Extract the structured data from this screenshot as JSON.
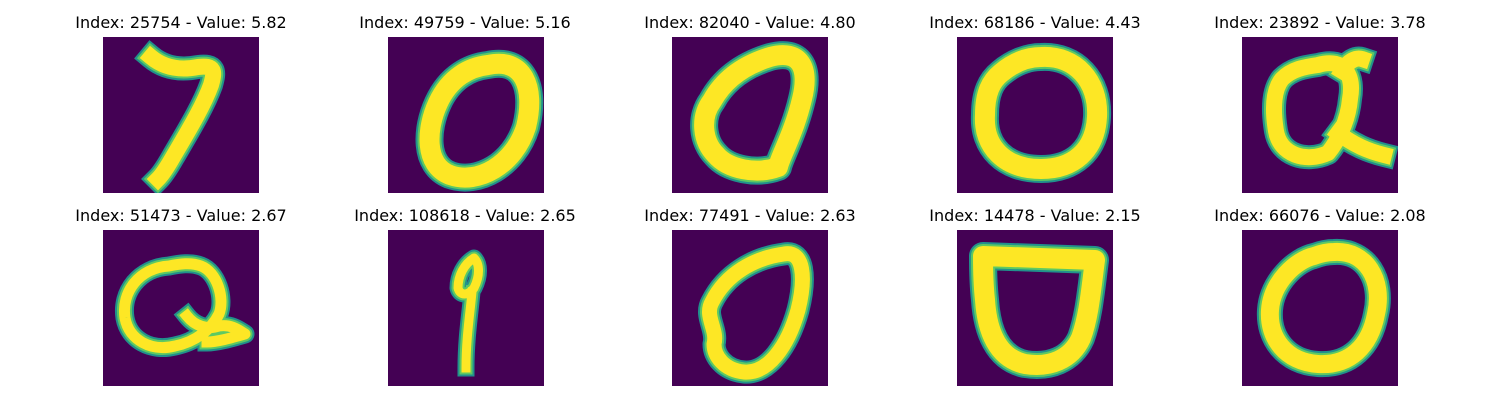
{
  "colors": {
    "background": "#440154",
    "stroke_core": "#fde725",
    "stroke_edge": "#21918c",
    "stroke_mid": "#5ec962",
    "caption_text": "#000000"
  },
  "panels": [
    {
      "caption": "Index: 25754 - Value: 5.82",
      "index": 25754,
      "value": 5.82,
      "glyph": "handwritten-digit-seven",
      "paths": [
        "M 48 20 C 60 30, 75 34, 95 30 C 112 28, 112 34, 108 48 C 100 70, 84 96, 70 120 C 62 134, 57 140, 55 142"
      ],
      "stroke_width": 16
    },
    {
      "caption": "Index: 49759 - Value: 5.16",
      "index": 49759,
      "value": 5.16,
      "glyph": "handwritten-digit-zero",
      "paths": [
        "M 100 28 C 135 20, 148 50, 138 90 C 126 128, 90 148, 62 138 C 36 128, 38 92, 50 66 C 62 40, 82 30, 100 28 Z"
      ],
      "stroke_width": 20
    },
    {
      "caption": "Index: 82040 - Value: 4.80",
      "index": 82040,
      "value": 4.8,
      "glyph": "handwritten-digit-zero",
      "paths": [
        "M 98 20 C 128 12, 138 30, 130 62 C 122 96, 108 120, 106 130 C 84 138, 56 132, 44 118 C 30 104, 28 80, 40 64 C 52 42, 72 28, 98 20 Z"
      ],
      "stroke_width": 20
    },
    {
      "caption": "Index: 68186 - Value: 4.43",
      "index": 68186,
      "value": 4.43,
      "glyph": "handwritten-digit-zero",
      "paths": [
        "M 84 20 C 118 18, 142 44, 140 80 C 138 114, 116 132, 84 132 C 48 132, 26 110, 28 78 C 28 56, 34 44, 44 36 C 56 26, 70 20, 84 20 Z"
      ],
      "stroke_width": 20
    },
    {
      "caption": "Index: 23892 - Value: 3.78",
      "index": 23892,
      "value": 3.78,
      "glyph": "handwritten-letter-q",
      "paths": [
        "M 76 28 C 104 20, 112 40, 108 62 C 106 84, 96 104, 86 116 C 64 126, 38 118, 34 94 C 30 70, 32 52, 40 42 C 50 32, 62 30, 76 28 Z",
        "M 96 96 C 112 108, 126 114, 142 118",
        "M 100 34 C 106 24, 114 20, 120 22"
      ],
      "stroke_width": 16
    },
    {
      "caption": "Index: 51473 - Value: 2.67",
      "index": 51473,
      "value": 2.67,
      "glyph": "handwritten-letter-q",
      "paths": [
        "M 66 36 C 36 38, 18 62, 22 88 C 26 110, 48 122, 72 116 C 92 112, 108 100, 116 84 C 122 68, 114 42, 98 36 C 88 32, 76 34, 66 36 Z",
        "M 84 86 C 92 96, 104 100, 116 96 C 128 94, 136 100, 142 104 C 128 108, 114 112, 104 112"
      ],
      "stroke_width": 11
    },
    {
      "caption": "Index: 108618 - Value: 2.65",
      "index": 108618,
      "value": 2.65,
      "glyph": "handwritten-digit-nine",
      "paths": [
        "M 86 28 C 76 34, 70 46, 70 58 C 72 66, 80 66, 86 58 C 92 46, 92 34, 86 28 Z",
        "M 84 62 C 82 84, 78 108, 78 138"
      ],
      "stroke_width": 9
    },
    {
      "caption": "Index: 77491 - Value: 2.63",
      "index": 77491,
      "value": 2.63,
      "glyph": "handwritten-digit-zero",
      "paths": [
        "M 112 24 C 132 20, 134 48, 126 80 C 116 116, 96 144, 72 142 C 52 140, 42 126, 42 114 C 46 100, 32 86, 40 72 C 54 44, 82 28, 112 24 Z"
      ],
      "stroke_width": 15
    },
    {
      "caption": "Index: 14478 - Value: 2.15",
      "index": 14478,
      "value": 2.15,
      "glyph": "handwritten-letter-d",
      "paths": [
        "M 26 26 L 138 30 C 134 60, 132 86, 124 108 C 114 130, 92 138, 68 134 C 40 128, 30 100, 28 70 C 26 52, 26 38, 26 26 Z"
      ],
      "stroke_width": 20
    },
    {
      "caption": "Index: 66076 - Value: 2.08",
      "index": 66076,
      "value": 2.08,
      "glyph": "handwritten-digit-zero",
      "paths": [
        "M 92 22 C 124 20, 142 50, 134 84 C 128 116, 108 136, 76 134 C 44 132, 26 108, 28 80 C 30 52, 54 30, 72 26 C 80 23, 86 22, 92 22 Z"
      ],
      "stroke_width": 18
    }
  ]
}
